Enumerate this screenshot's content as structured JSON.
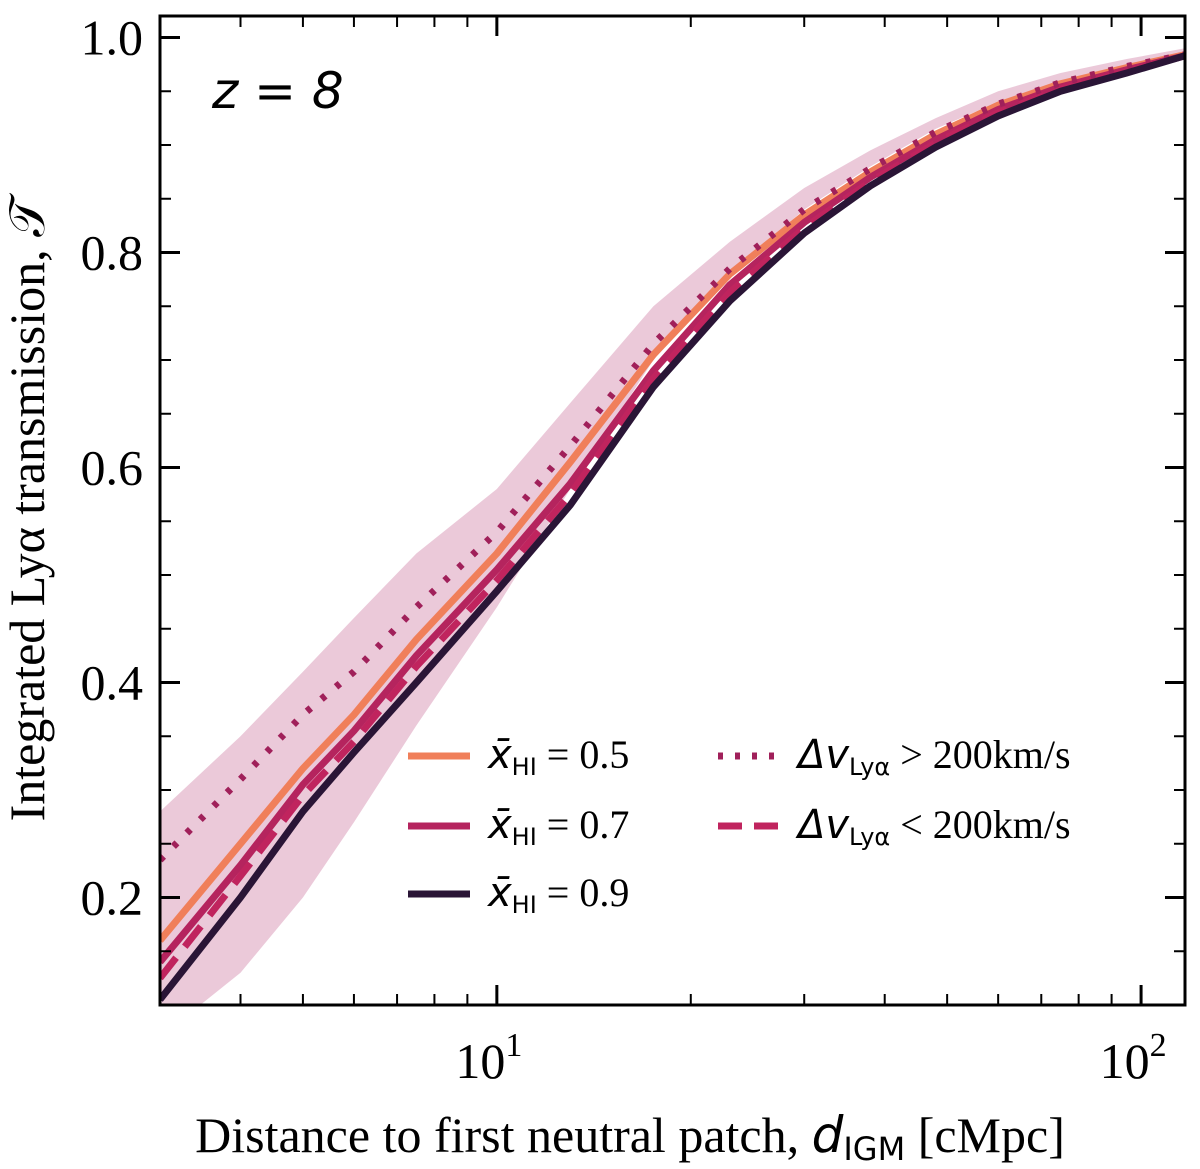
{
  "chart_data": {
    "type": "line",
    "annotation": "z = 8",
    "xlabel": "Distance to first neutral patch, d_IGM [cMpc]",
    "xlabel_parts": {
      "prefix": "Distance to first neutral patch, ",
      "symbol": "d",
      "subscript": "IGM",
      "suffix": " [cMpc]"
    },
    "ylabel": "Integrated Lyα transmission, 𝒯",
    "xscale": "log",
    "xlim": [
      3.0,
      117
    ],
    "ylim": [
      0.1,
      1.02
    ],
    "xticks": [
      {
        "value": 10,
        "base": "10",
        "exp": "1"
      },
      {
        "value": 100,
        "base": "10",
        "exp": "2"
      }
    ],
    "yticks": [
      {
        "value": 0.2,
        "label": "0.2"
      },
      {
        "value": 0.4,
        "label": "0.4"
      },
      {
        "value": 0.6,
        "label": "0.6"
      },
      {
        "value": 0.8,
        "label": "0.8"
      },
      {
        "value": 1.0,
        "label": "1.0"
      }
    ],
    "x": [
      3.0,
      4.0,
      5.0,
      6.0,
      7.5,
      10,
      13,
      17.5,
      23,
      30,
      38,
      48,
      60,
      75,
      95,
      117
    ],
    "band": {
      "name": "scatter",
      "color": "#e8bfd2",
      "lower": [
        0.07,
        0.13,
        0.2,
        0.27,
        0.36,
        0.47,
        0.58,
        0.7,
        0.78,
        0.84,
        0.88,
        0.915,
        0.94,
        0.96,
        0.975,
        0.985
      ],
      "upper": [
        0.28,
        0.35,
        0.41,
        0.46,
        0.52,
        0.58,
        0.66,
        0.75,
        0.81,
        0.86,
        0.895,
        0.925,
        0.95,
        0.967,
        0.98,
        0.99
      ]
    },
    "series": [
      {
        "name": "x̄_HI = 0.5",
        "style": "solid",
        "color": "#f07f5a",
        "values": [
          0.16,
          0.25,
          0.32,
          0.37,
          0.44,
          0.52,
          0.605,
          0.705,
          0.78,
          0.835,
          0.875,
          0.91,
          0.937,
          0.957,
          0.972,
          0.984
        ]
      },
      {
        "name": "x̄_HI = 0.7",
        "style": "solid",
        "color": "#b5245e",
        "values": [
          0.14,
          0.23,
          0.305,
          0.355,
          0.425,
          0.505,
          0.585,
          0.69,
          0.77,
          0.828,
          0.87,
          0.905,
          0.933,
          0.954,
          0.97,
          0.983
        ]
      },
      {
        "name": "x̄_HI = 0.9",
        "style": "solid",
        "color": "#2a1536",
        "values": [
          0.105,
          0.2,
          0.28,
          0.335,
          0.4,
          0.485,
          0.565,
          0.675,
          0.755,
          0.818,
          0.862,
          0.898,
          0.927,
          0.95,
          0.967,
          0.983
        ]
      },
      {
        "name": "Δv_Lyα > 200km/s",
        "style": "dotted",
        "color": "#a0205a",
        "values": [
          0.235,
          0.31,
          0.37,
          0.41,
          0.47,
          0.54,
          0.62,
          0.715,
          0.785,
          0.84,
          0.878,
          0.912,
          0.938,
          0.958,
          0.973,
          0.984
        ]
      },
      {
        "name": "Δv_Lyα < 200km/s",
        "style": "dashed",
        "color": "#c0245e",
        "values": [
          0.125,
          0.22,
          0.295,
          0.345,
          0.415,
          0.495,
          0.575,
          0.683,
          0.763,
          0.823,
          0.866,
          0.902,
          0.93,
          0.952,
          0.968,
          0.983
        ]
      }
    ],
    "legend": {
      "placement": "lower-right",
      "entries": [
        {
          "label_main": "x̄",
          "label_sub": "HI",
          "label_rest": " = 0.5",
          "series": 0
        },
        {
          "label_main": "x̄",
          "label_sub": "HI",
          "label_rest": " = 0.7",
          "series": 1
        },
        {
          "label_main": "x̄",
          "label_sub": "HI",
          "label_rest": " = 0.9",
          "series": 2
        },
        {
          "label_main": "Δv",
          "label_sub": "Lyα",
          "label_rest": " > 200km/s",
          "series": 3
        },
        {
          "label_main": "Δv",
          "label_sub": "Lyα",
          "label_rest": " < 200km/s",
          "series": 4
        }
      ]
    }
  }
}
